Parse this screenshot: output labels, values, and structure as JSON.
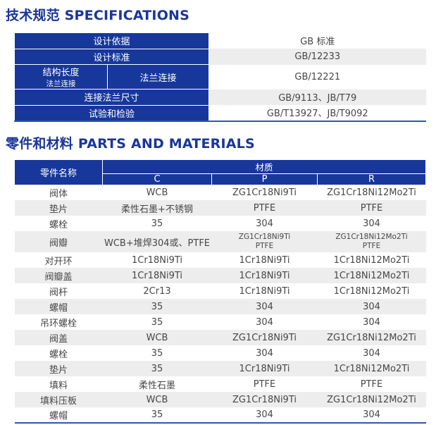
{
  "colors": {
    "accent": "#17379b",
    "title": "#1a3697",
    "stripe": "#ededed",
    "rule": "#2d57b2",
    "text": "#474747"
  },
  "spec_section": {
    "title_zh": "技术规范",
    "title_en": "SPECIFICATIONS",
    "rows": [
      {
        "label": "设计依据",
        "value": "GB 标准"
      },
      {
        "label": "设计标准",
        "value": "GB/12233"
      },
      {
        "label": "结构长度",
        "label2": "法兰连接",
        "value": "GB/12221"
      },
      {
        "label": "连接法兰尺寸",
        "value": "GB/9113、JB/T79"
      },
      {
        "label": "试验和检验",
        "value": "GB/T13927、JB/T9092"
      }
    ]
  },
  "parts_section": {
    "title_zh": "零件和材料",
    "title_en": "PARTS AND MATERIALS",
    "header": {
      "part_name": "零件名称",
      "material": "材质",
      "col_c": "C",
      "col_p": "P",
      "col_r": "R"
    },
    "rows": [
      {
        "name": "阀体",
        "c": "WCB",
        "p": "ZG1Cr18Ni9Ti",
        "r": "ZG1Cr18Ni12Mo2Ti"
      },
      {
        "name": "垫片",
        "c": "柔性石墨+不锈钢",
        "p": "PTFE",
        "r": "PTFE"
      },
      {
        "name": "螺栓",
        "c": "35",
        "p": "304",
        "r": "304"
      },
      {
        "name": "阀瓣",
        "c": "WCB+堆焊304或、PTFE",
        "p": "ZG1Cr18Ni9Ti",
        "p2": "PTFE",
        "r": "ZG1Cr18Ni12Mo2Ti",
        "r2": "PTFE"
      },
      {
        "name": "对开环",
        "c": "1Cr18Ni9Ti",
        "p": "1Cr18Ni9Ti",
        "r": "1Cr18Ni12Mo2Ti"
      },
      {
        "name": "阀瓣盖",
        "c": "1Cr18Ni9Ti",
        "p": "1Cr18Ni9Ti",
        "r": "1Cr18Ni12Mo2Ti"
      },
      {
        "name": "阀杆",
        "c": "2Cr13",
        "p": "1Cr18Ni9Ti",
        "r": "1Cr18Ni12Mo2Ti"
      },
      {
        "name": "螺帽",
        "c": "35",
        "p": "304",
        "r": "304"
      },
      {
        "name": "吊环螺栓",
        "c": "35",
        "p": "304",
        "r": "304"
      },
      {
        "name": "阀盖",
        "c": "WCB",
        "p": "ZG1Cr18Ni9Ti",
        "r": "ZG1Cr18Ni12Mo2Ti"
      },
      {
        "name": "螺栓",
        "c": "35",
        "p": "304",
        "r": "304"
      },
      {
        "name": "垫片",
        "c": "35",
        "p": "1Cr18Ni9Ti",
        "r": "1Cr18Ni12Mo2Ti"
      },
      {
        "name": "填料",
        "c": "柔性石墨",
        "p": "PTFE",
        "r": "PTFE"
      },
      {
        "name": "填料压板",
        "c": "WCB",
        "p": "ZG1Cr18Ni9Ti",
        "r": "ZG1Cr18Ni12Mo2Ti"
      },
      {
        "name": "螺帽",
        "c": "35",
        "p": "304",
        "r": "304"
      }
    ]
  }
}
